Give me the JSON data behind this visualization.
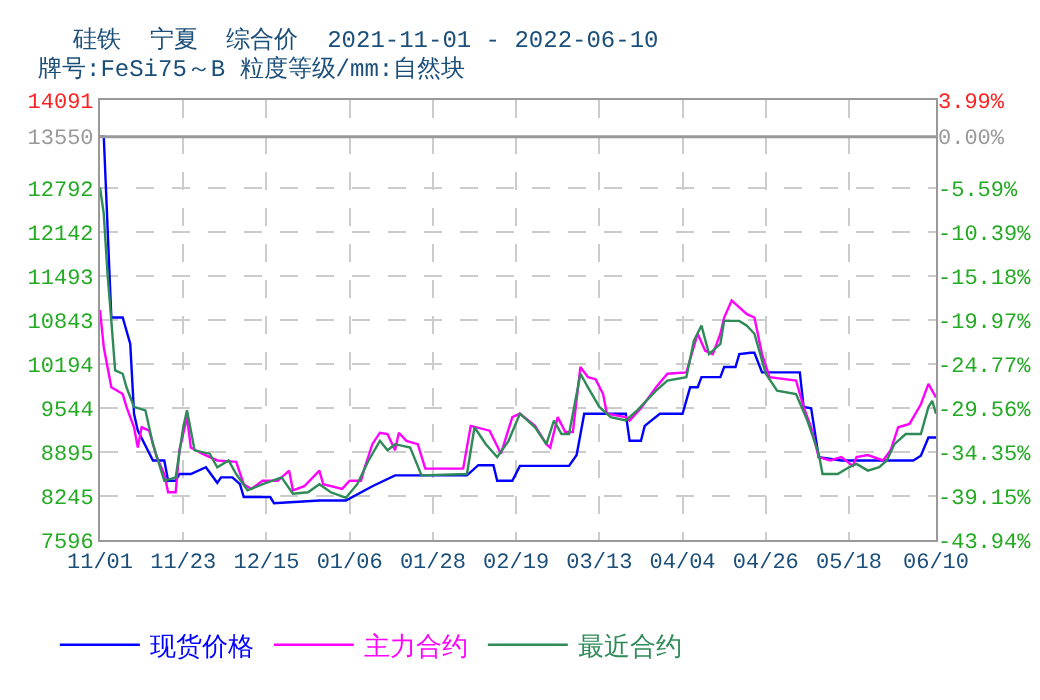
{
  "chart_data": {
    "type": "line",
    "title": "硅铁  宁夏  综合价  2021-11-01 - 2022-06-10",
    "subtitle": "牌号:FeSi75～B 粒度等级/mm:自然块",
    "xlim": [
      "2021-11-01",
      "2022-06-10"
    ],
    "xticks": [
      {
        "value": "2021-11-01",
        "label": "11/01"
      },
      {
        "value": "2021-11-23",
        "label": "11/23"
      },
      {
        "value": "2021-12-15",
        "label": "12/15"
      },
      {
        "value": "2022-01-06",
        "label": "01/06"
      },
      {
        "value": "2022-01-28",
        "label": "01/28"
      },
      {
        "value": "2022-02-19",
        "label": "02/19"
      },
      {
        "value": "2022-03-13",
        "label": "03/13"
      },
      {
        "value": "2022-04-04",
        "label": "04/04"
      },
      {
        "value": "2022-04-26",
        "label": "04/26"
      },
      {
        "value": "2022-05-18",
        "label": "05/18"
      },
      {
        "value": "2022-06-10",
        "label": "06/10"
      }
    ],
    "ylim": [
      7596,
      14091
    ],
    "yticks": [
      7596,
      8245,
      8895,
      9544,
      10194,
      10843,
      11493,
      12142,
      12792,
      13550,
      14091
    ],
    "y2lim": [
      -43.94,
      3.99
    ],
    "y2ticks": [
      {
        "value": -43.94,
        "label": "-43.94%"
      },
      {
        "value": -39.15,
        "label": "-39.15%"
      },
      {
        "value": -34.35,
        "label": "-34.35%"
      },
      {
        "value": -29.56,
        "label": "-29.56%"
      },
      {
        "value": -24.77,
        "label": "-24.77%"
      },
      {
        "value": -19.97,
        "label": "-19.97%"
      },
      {
        "value": -15.18,
        "label": "-15.18%"
      },
      {
        "value": -10.39,
        "label": "-10.39%"
      },
      {
        "value": -5.59,
        "label": "-5.59%"
      },
      {
        "value": 0,
        "label": "0.00%"
      },
      {
        "value": 3.99,
        "label": "3.99%"
      }
    ],
    "ref_lines": [
      {
        "axis": "y",
        "value": 13550,
        "color": "#999999",
        "line_style": "solid"
      }
    ],
    "grid": true,
    "legend": "bottom",
    "series": [
      {
        "name": "现货价格",
        "color": "#0000ff",
        "x": [
          "2021-11-01",
          "2021-11-02",
          "2021-11-04",
          "2021-11-07",
          "2021-11-09",
          "2021-11-10",
          "2021-11-11",
          "2021-11-15",
          "2021-11-18",
          "2021-11-19",
          "2021-11-21",
          "2021-11-22",
          "2021-11-25",
          "2021-11-29",
          "2021-12-02",
          "2021-12-03",
          "2021-12-06",
          "2021-12-08",
          "2021-12-09",
          "2021-12-16",
          "2021-12-17",
          "2021-12-29",
          "2022-01-05",
          "2022-01-12",
          "2022-01-18",
          "2022-02-06",
          "2022-02-09",
          "2022-02-13",
          "2022-02-14",
          "2022-02-18",
          "2022-02-20",
          "2022-03-05",
          "2022-03-07",
          "2022-03-09",
          "2022-03-20",
          "2022-03-21",
          "2022-03-24",
          "2022-03-25",
          "2022-03-29",
          "2022-04-04",
          "2022-04-06",
          "2022-04-08",
          "2022-04-09",
          "2022-04-14",
          "2022-04-15",
          "2022-04-18",
          "2022-04-19",
          "2022-04-22",
          "2022-04-23",
          "2022-04-25",
          "2022-05-05",
          "2022-05-06",
          "2022-05-08",
          "2022-05-10",
          "2022-05-16",
          "2022-05-30",
          "2022-06-04",
          "2022-06-06",
          "2022-06-08",
          "2022-06-10"
        ],
        "values": [
          13550,
          13550,
          10880,
          10880,
          10490,
          9460,
          9210,
          8770,
          8770,
          8470,
          8470,
          8570,
          8570,
          8670,
          8440,
          8520,
          8520,
          8420,
          8230,
          8230,
          8140,
          8180,
          8180,
          8390,
          8550,
          8550,
          8700,
          8700,
          8470,
          8470,
          8690,
          8690,
          8850,
          9460,
          9460,
          9060,
          9060,
          9280,
          9460,
          9460,
          9850,
          9850,
          10000,
          10000,
          10150,
          10150,
          10340,
          10360,
          10360,
          10070,
          10070,
          9560,
          9540,
          8820,
          8770,
          8770,
          8770,
          8840,
          9110,
          9110
        ]
      },
      {
        "name": "主力合约",
        "color": "#ff00ff",
        "x": [
          "2021-11-01",
          "2021-11-02",
          "2021-11-04",
          "2021-11-07",
          "2021-11-08",
          "2021-11-10",
          "2021-11-11",
          "2021-11-12",
          "2021-11-14",
          "2021-11-16",
          "2021-11-18",
          "2021-11-19",
          "2021-11-21",
          "2021-11-22",
          "2021-11-24",
          "2021-11-25",
          "2021-11-28",
          "2021-12-02",
          "2021-12-07",
          "2021-12-09",
          "2021-12-11",
          "2021-12-14",
          "2021-12-18",
          "2021-12-21",
          "2021-12-22",
          "2021-12-25",
          "2021-12-29",
          "2021-12-30",
          "2022-01-04",
          "2022-01-06",
          "2022-01-09",
          "2022-01-10",
          "2022-01-12",
          "2022-01-14",
          "2022-01-16",
          "2022-01-18",
          "2022-01-19",
          "2022-01-21",
          "2022-01-24",
          "2022-01-26",
          "2022-02-05",
          "2022-02-07",
          "2022-02-12",
          "2022-02-15",
          "2022-02-18",
          "2022-02-20",
          "2022-02-24",
          "2022-02-27",
          "2022-02-28",
          "2022-03-02",
          "2022-03-04",
          "2022-03-06",
          "2022-03-08",
          "2022-03-10",
          "2022-03-12",
          "2022-03-14",
          "2022-03-15",
          "2022-03-20",
          "2022-03-21",
          "2022-03-24",
          "2022-03-28",
          "2022-03-31",
          "2022-04-05",
          "2022-04-08",
          "2022-04-10",
          "2022-04-12",
          "2022-04-14",
          "2022-04-15",
          "2022-04-17",
          "2022-04-19",
          "2022-04-21",
          "2022-04-23",
          "2022-04-25",
          "2022-04-27",
          "2022-05-04",
          "2022-05-06",
          "2022-05-08",
          "2022-05-10",
          "2022-05-13",
          "2022-05-16",
          "2022-05-19",
          "2022-05-20",
          "2022-05-23",
          "2022-05-27",
          "2022-05-29",
          "2022-05-31",
          "2022-06-03",
          "2022-06-06",
          "2022-06-08",
          "2022-06-10"
        ],
        "values": [
          10990,
          10440,
          9850,
          9750,
          9560,
          9260,
          8960,
          9260,
          9210,
          8820,
          8570,
          8300,
          8300,
          8920,
          9410,
          8960,
          8870,
          8770,
          8750,
          8420,
          8350,
          8470,
          8470,
          8620,
          8330,
          8390,
          8620,
          8420,
          8350,
          8470,
          8470,
          8670,
          9010,
          9180,
          9160,
          8920,
          9180,
          9060,
          9010,
          8650,
          8650,
          9280,
          9210,
          8870,
          9410,
          9460,
          9280,
          9010,
          8960,
          9410,
          9190,
          9190,
          10150,
          10000,
          9970,
          9750,
          9460,
          9410,
          9360,
          9540,
          9850,
          10050,
          10070,
          10640,
          10390,
          10340,
          10640,
          10880,
          11130,
          11030,
          10930,
          10880,
          10340,
          10000,
          9950,
          9560,
          9260,
          8820,
          8770,
          8820,
          8690,
          8820,
          8850,
          8770,
          8920,
          9260,
          9310,
          9600,
          9900,
          9700
        ]
      },
      {
        "name": "最近合约",
        "color": "#2e8b57",
        "x": [
          "2021-11-01",
          "2021-11-02",
          "2021-11-03",
          "2021-11-04",
          "2021-11-05",
          "2021-11-07",
          "2021-11-08",
          "2021-11-10",
          "2021-11-13",
          "2021-11-15",
          "2021-11-18",
          "2021-11-21",
          "2021-11-23",
          "2021-11-24",
          "2021-11-26",
          "2021-11-30",
          "2021-12-02",
          "2021-12-05",
          "2021-12-07",
          "2021-12-10",
          "2021-12-14",
          "2021-12-19",
          "2021-12-22",
          "2021-12-26",
          "2021-12-29",
          "2022-01-01",
          "2022-01-05",
          "2022-01-08",
          "2022-01-11",
          "2022-01-14",
          "2022-01-16",
          "2022-01-18",
          "2022-01-22",
          "2022-01-25",
          "2022-02-06",
          "2022-02-08",
          "2022-02-11",
          "2022-02-14",
          "2022-02-17",
          "2022-02-20",
          "2022-02-24",
          "2022-02-27",
          "2022-03-01",
          "2022-03-03",
          "2022-03-05",
          "2022-03-08",
          "2022-03-10",
          "2022-03-13",
          "2022-03-16",
          "2022-03-20",
          "2022-03-23",
          "2022-03-28",
          "2022-03-31",
          "2022-04-05",
          "2022-04-07",
          "2022-04-09",
          "2022-04-11",
          "2022-04-14",
          "2022-04-15",
          "2022-04-19",
          "2022-04-21",
          "2022-04-23",
          "2022-04-26",
          "2022-04-29",
          "2022-05-04",
          "2022-05-07",
          "2022-05-10",
          "2022-05-11",
          "2022-05-15",
          "2022-05-18",
          "2022-05-20",
          "2022-05-23",
          "2022-05-26",
          "2022-05-28",
          "2022-05-30",
          "2022-06-02",
          "2022-06-06",
          "2022-06-08",
          "2022-06-09",
          "2022-06-10"
        ],
        "values": [
          12800,
          12410,
          11520,
          10830,
          10100,
          10050,
          9850,
          9560,
          9510,
          9010,
          8470,
          8520,
          9260,
          9510,
          8920,
          8870,
          8670,
          8770,
          8570,
          8330,
          8420,
          8520,
          8280,
          8300,
          8420,
          8300,
          8220,
          8420,
          8770,
          9060,
          8920,
          9010,
          8960,
          8550,
          8570,
          9260,
          9010,
          8820,
          9060,
          9460,
          9260,
          9010,
          9360,
          9160,
          9160,
          10050,
          9850,
          9560,
          9410,
          9360,
          9510,
          9800,
          9950,
          10000,
          10540,
          10760,
          10340,
          10490,
          10830,
          10830,
          10760,
          10640,
          10050,
          9800,
          9750,
          9360,
          8870,
          8570,
          8570,
          8670,
          8720,
          8620,
          8670,
          8770,
          9010,
          9160,
          9160,
          9560,
          9650,
          9460
        ]
      }
    ]
  }
}
